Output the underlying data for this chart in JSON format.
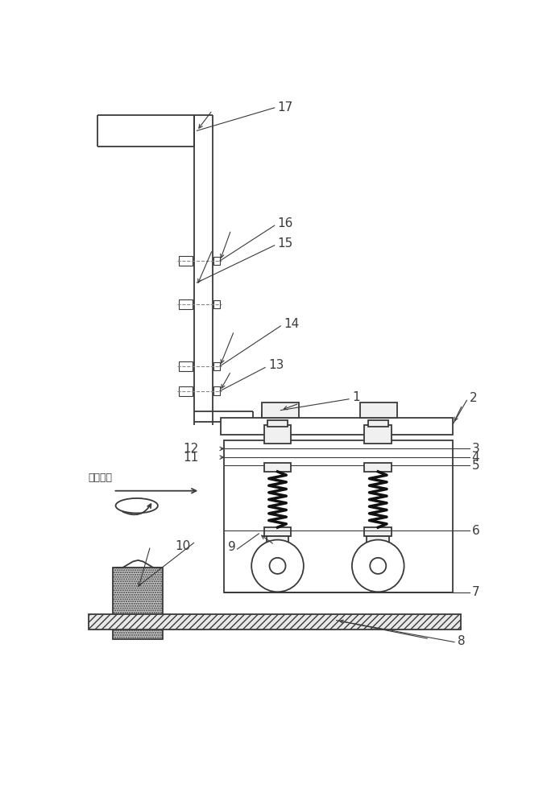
{
  "bg_color": "#ffffff",
  "lc": "#3a3a3a",
  "lw": 1.3,
  "tlw": 0.8,
  "dc": "#888888",
  "sc": "#111111",
  "label_fs": 11,
  "hatch_fc": "#e8e8e8",
  "stipple_fc": "#d0d0d0",
  "cap_fc": "#f0f0f0",
  "bump_fc": "#f0f0f0"
}
